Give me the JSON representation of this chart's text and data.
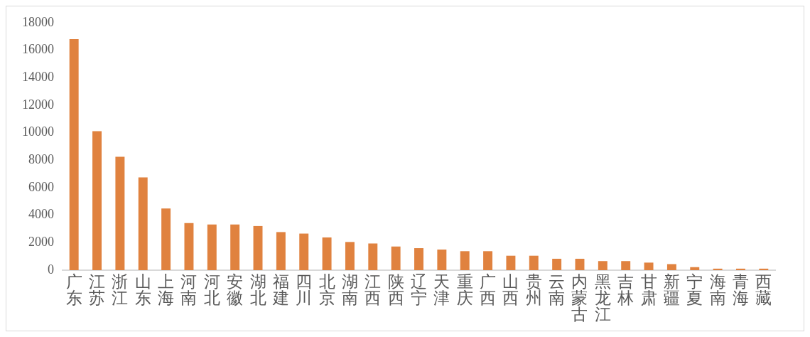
{
  "chart_data": {
    "type": "bar",
    "categories": [
      "广东",
      "江苏",
      "浙江",
      "山东",
      "上海",
      "河南",
      "河北",
      "安徽",
      "湖北",
      "福建",
      "四川",
      "北京",
      "湖南",
      "江西",
      "陕西",
      "辽宁",
      "天津",
      "重庆",
      "广西",
      "山西",
      "贵州",
      "云南",
      "内蒙古",
      "黑龙江",
      "吉林",
      "甘肃",
      "新疆",
      "宁夏",
      "海南",
      "青海",
      "西藏"
    ],
    "values": [
      16800,
      10100,
      8250,
      6750,
      4480,
      3430,
      3320,
      3320,
      3210,
      2770,
      2660,
      2380,
      2050,
      1940,
      1720,
      1600,
      1500,
      1380,
      1380,
      1050,
      1050,
      830,
      830,
      660,
      660,
      550,
      440,
      220,
      110,
      110,
      110
    ],
    "color": "#e0823f",
    "ylim": [
      0,
      18000
    ],
    "yticks": [
      0,
      2000,
      4000,
      6000,
      8000,
      10000,
      12000,
      14000,
      16000,
      18000
    ],
    "grid": false
  }
}
